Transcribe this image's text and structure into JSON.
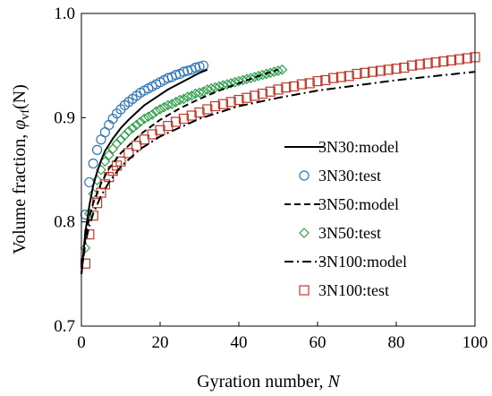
{
  "chart_data": {
    "type": "scatter",
    "title": "",
    "xlabel_text": "Gyration number, ",
    "xlabel_var": "N",
    "ylabel_text": "Volume fraction, ",
    "ylabel_phi": "φ",
    "ylabel_sub": "vf",
    "ylabel_tail": "(N)",
    "xlim": [
      0,
      100
    ],
    "ylim": [
      0.7,
      1.0
    ],
    "xticks": [
      0,
      20,
      40,
      60,
      80,
      100
    ],
    "xtick_labels": [
      "0",
      "20",
      "40",
      "60",
      "80",
      "100"
    ],
    "yticks": [
      0.7,
      0.8,
      0.9,
      1.0
    ],
    "ytick_labels": [
      "0.7",
      "0.8",
      "0.9",
      "1.0"
    ],
    "grid": false,
    "legend_position": "right",
    "series": [
      {
        "name": "3N30:model",
        "kind": "line",
        "dash": "solid",
        "color": "#000000",
        "x": [
          0,
          1,
          2,
          3,
          4,
          5,
          6,
          8,
          10,
          12,
          14,
          16,
          18,
          20,
          22,
          24,
          26,
          28,
          30,
          32
        ],
        "y": [
          0.75,
          0.79,
          0.815,
          0.835,
          0.848,
          0.859,
          0.868,
          0.88,
          0.89,
          0.898,
          0.905,
          0.912,
          0.917,
          0.922,
          0.927,
          0.931,
          0.935,
          0.939,
          0.943,
          0.946
        ]
      },
      {
        "name": "3N30:test",
        "kind": "marker",
        "marker": "circle",
        "color": "#2E75B6",
        "x": [
          1,
          2,
          3,
          4,
          5,
          6,
          7,
          8,
          9,
          10,
          11,
          12,
          13,
          14,
          15,
          16,
          17,
          18,
          19,
          20,
          21,
          22,
          23,
          24,
          25,
          26,
          27,
          28,
          29,
          30,
          31
        ],
        "y": [
          0.807,
          0.838,
          0.856,
          0.869,
          0.879,
          0.886,
          0.893,
          0.899,
          0.904,
          0.908,
          0.912,
          0.915,
          0.918,
          0.921,
          0.924,
          0.926,
          0.928,
          0.93,
          0.932,
          0.934,
          0.936,
          0.938,
          0.939,
          0.941,
          0.942,
          0.944,
          0.945,
          0.946,
          0.948,
          0.949,
          0.95
        ]
      },
      {
        "name": "3N50:model",
        "kind": "line",
        "dash": "dash",
        "color": "#000000",
        "x": [
          0,
          1,
          2,
          3,
          5,
          7,
          10,
          15,
          20,
          25,
          30,
          35,
          40,
          45,
          50
        ],
        "y": [
          0.75,
          0.784,
          0.804,
          0.818,
          0.837,
          0.851,
          0.866,
          0.884,
          0.898,
          0.909,
          0.918,
          0.926,
          0.933,
          0.94,
          0.946
        ]
      },
      {
        "name": "3N50:test",
        "kind": "marker",
        "marker": "diamond",
        "color": "#2E9E4A",
        "x": [
          1,
          2,
          3,
          4,
          5,
          6,
          7,
          8,
          9,
          10,
          11,
          12,
          13,
          14,
          15,
          16,
          17,
          18,
          19,
          20,
          21,
          22,
          23,
          24,
          25,
          26,
          27,
          28,
          29,
          30,
          31,
          32,
          33,
          34,
          35,
          36,
          37,
          38,
          39,
          40,
          41,
          42,
          43,
          44,
          45,
          46,
          47,
          48,
          49,
          50,
          51
        ],
        "y": [
          0.775,
          0.808,
          0.827,
          0.84,
          0.85,
          0.858,
          0.864,
          0.87,
          0.875,
          0.879,
          0.883,
          0.887,
          0.89,
          0.893,
          0.896,
          0.899,
          0.901,
          0.903,
          0.906,
          0.908,
          0.91,
          0.912,
          0.913,
          0.915,
          0.917,
          0.918,
          0.92,
          0.921,
          0.923,
          0.924,
          0.925,
          0.927,
          0.928,
          0.929,
          0.93,
          0.931,
          0.932,
          0.933,
          0.934,
          0.935,
          0.936,
          0.937,
          0.938,
          0.939,
          0.94,
          0.941,
          0.942,
          0.943,
          0.944,
          0.945,
          0.946
        ]
      },
      {
        "name": "3N100:model",
        "kind": "line",
        "dash": "dashdot",
        "color": "#000000",
        "x": [
          0,
          1,
          2,
          3,
          5,
          7,
          10,
          15,
          20,
          30,
          40,
          50,
          60,
          70,
          80,
          90,
          100
        ],
        "y": [
          0.75,
          0.78,
          0.796,
          0.808,
          0.825,
          0.838,
          0.853,
          0.87,
          0.882,
          0.899,
          0.911,
          0.919,
          0.926,
          0.931,
          0.936,
          0.94,
          0.944
        ]
      },
      {
        "name": "3N100:test",
        "kind": "marker",
        "marker": "square",
        "color": "#C0392B",
        "x": [
          1,
          2,
          3,
          4,
          5,
          6,
          7,
          8,
          9,
          10,
          12,
          14,
          16,
          18,
          20,
          22,
          24,
          26,
          28,
          30,
          32,
          34,
          36,
          38,
          40,
          42,
          44,
          46,
          48,
          50,
          52,
          54,
          56,
          58,
          60,
          62,
          64,
          66,
          68,
          70,
          72,
          74,
          76,
          78,
          80,
          82,
          84,
          86,
          88,
          90,
          92,
          94,
          96,
          98,
          100
        ],
        "y": [
          0.76,
          0.788,
          0.806,
          0.818,
          0.828,
          0.836,
          0.843,
          0.849,
          0.854,
          0.858,
          0.866,
          0.873,
          0.879,
          0.884,
          0.888,
          0.892,
          0.896,
          0.899,
          0.902,
          0.905,
          0.908,
          0.911,
          0.913,
          0.915,
          0.917,
          0.919,
          0.921,
          0.923,
          0.925,
          0.927,
          0.929,
          0.93,
          0.932,
          0.933,
          0.935,
          0.936,
          0.938,
          0.939,
          0.94,
          0.942,
          0.943,
          0.944,
          0.945,
          0.946,
          0.947,
          0.948,
          0.95,
          0.951,
          0.952,
          0.953,
          0.954,
          0.955,
          0.956,
          0.957,
          0.958
        ]
      }
    ]
  }
}
